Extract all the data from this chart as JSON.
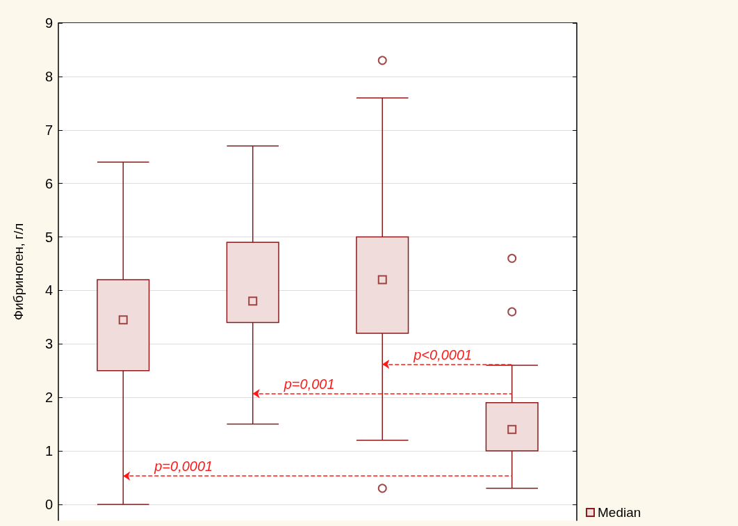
{
  "chart_data": {
    "type": "box",
    "ylabel": "Фибриноген, г/л",
    "categories": [
      null,
      null,
      null,
      null
    ],
    "ylim": [
      -0.3,
      9
    ],
    "yticks": [
      0,
      1,
      2,
      3,
      4,
      5,
      6,
      7,
      8,
      9
    ],
    "grid": "y",
    "legend": "bottom right",
    "marker": "square",
    "series": [
      {
        "name": "Median",
        "color": "#8b1a1a",
        "boxes": [
          {
            "low": 0,
            "q1": 2.5,
            "median": 3.45,
            "q3": 4.2,
            "high": 6.4
          },
          {
            "low": 1.5,
            "q1": 3.4,
            "median": 3.8,
            "q3": 4.9,
            "high": 6.7
          },
          {
            "low": 1.2,
            "q1": 3.2,
            "median": 4.2,
            "q3": 5.0,
            "high": 7.6,
            "outliers": [
              8.3,
              0.3
            ]
          },
          {
            "low": 0.3,
            "q1": 1.0,
            "median": 1.4,
            "q3": 1.9,
            "high": 2.6,
            "outliers": [
              4.6,
              3.6
            ]
          }
        ]
      }
    ],
    "annotations": [
      "p=0,0001",
      "p=0,001",
      "p<0,0001"
    ]
  }
}
